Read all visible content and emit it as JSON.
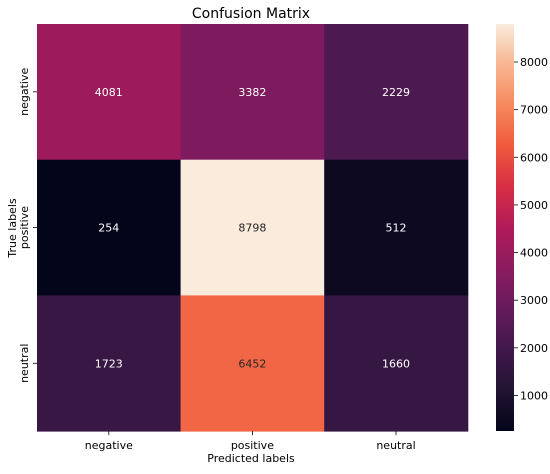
{
  "chart_data": {
    "type": "heatmap",
    "title": "Confusion Matrix",
    "xlabel": "Predicted labels",
    "ylabel": "True labels",
    "x_categories": [
      "negative",
      "positive",
      "neutral"
    ],
    "y_categories": [
      "negative",
      "positive",
      "neutral"
    ],
    "values": [
      [
        4081,
        3382,
        2229
      ],
      [
        254,
        8798,
        512
      ],
      [
        1723,
        6452,
        1660
      ]
    ],
    "colorbar": {
      "ticks": [
        1000,
        2000,
        3000,
        4000,
        5000,
        6000,
        7000,
        8000
      ],
      "vmin": 254,
      "vmax": 8798
    },
    "colormap": "rocket"
  }
}
